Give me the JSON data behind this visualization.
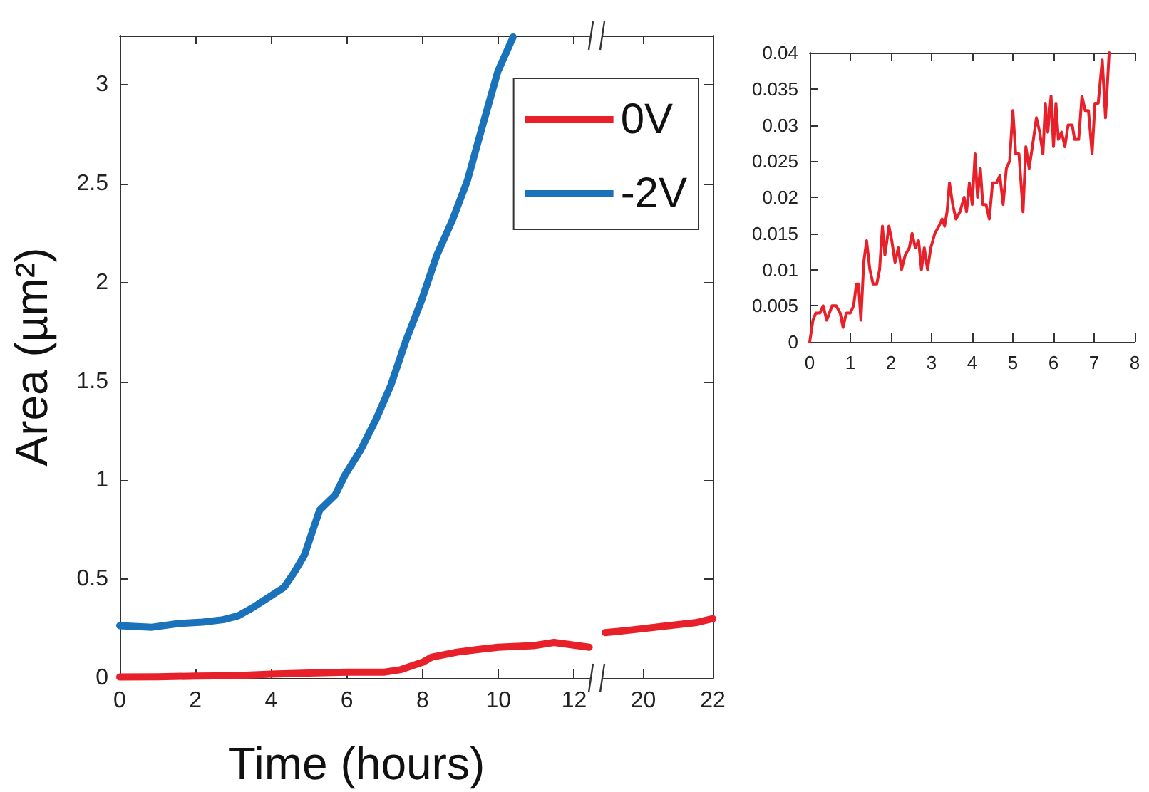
{
  "chart_data": [
    {
      "type": "line",
      "xlabel": "Time (hours)",
      "ylabel": "Area (µm²)",
      "xlim": [
        0,
        12.5
      ],
      "xticks": [
        0,
        2,
        4,
        6,
        8,
        10,
        12
      ],
      "ylim": [
        0,
        3.25
      ],
      "yticks": [
        0,
        0.5,
        1,
        1.5,
        2,
        2.5,
        3
      ],
      "grid": false,
      "legend": "top right",
      "marker": "none",
      "line_style": "solid",
      "series": [
        {
          "name": "0V",
          "color": "#e8202a",
          "x": [
            0,
            1,
            2,
            3,
            4,
            5,
            6,
            7,
            7.43,
            8,
            8.24,
            8.91,
            9.45,
            9.99,
            10.93,
            11.47,
            12.4
          ],
          "values": [
            0.005,
            0.006,
            0.01,
            0.012,
            0.02,
            0.025,
            0.03,
            0.03,
            0.043,
            0.08,
            0.106,
            0.131,
            0.144,
            0.156,
            0.164,
            0.18,
            0.156
          ]
        },
        {
          "name": "-2V",
          "color": "#1a72bb",
          "x": [
            0,
            0.85,
            1.52,
            2.19,
            2.73,
            3.13,
            3.53,
            3.94,
            4.34,
            4.61,
            4.88,
            5.08,
            5.28,
            5.69,
            5.95,
            6.36,
            6.76,
            7.16,
            7.56,
            7.97,
            8.37,
            8.78,
            9.18,
            9.58,
            9.99,
            10.39
          ],
          "values": [
            0.265,
            0.257,
            0.275,
            0.283,
            0.295,
            0.315,
            0.358,
            0.409,
            0.459,
            0.535,
            0.623,
            0.737,
            0.85,
            0.926,
            1.027,
            1.153,
            1.305,
            1.481,
            1.708,
            1.91,
            2.137,
            2.314,
            2.516,
            2.793,
            3.071,
            3.243
          ]
        }
      ]
    },
    {
      "type": "line",
      "xlim": [
        18.8,
        22
      ],
      "xticks": [
        20,
        22
      ],
      "ylim": [
        0,
        3.25
      ],
      "yticks": [
        0,
        0.5,
        1,
        1.5,
        2,
        2.5,
        3
      ],
      "grid": false,
      "tick_labels": "x",
      "marker": "none",
      "line_style": "solid",
      "series": [
        {
          "color": "#e8202a",
          "x": [
            18.9,
            19.5,
            20,
            20.5,
            21,
            21.5,
            22
          ],
          "values": [
            0.23,
            0.24,
            0.25,
            0.26,
            0.27,
            0.28,
            0.3
          ]
        }
      ]
    },
    {
      "type": "line",
      "xlim": [
        0,
        8
      ],
      "xticks": [
        0,
        1,
        2,
        3,
        4,
        5,
        6,
        7,
        8
      ],
      "ylim": [
        0,
        0.04
      ],
      "yticks": [
        0,
        0.005,
        0.01,
        0.015,
        0.02,
        0.025,
        0.03,
        0.035,
        0.04
      ],
      "grid": false,
      "marker": "none",
      "line_style": "solid",
      "series": [
        {
          "color": "#e8202a",
          "x": [
            0,
            0.08,
            0.15,
            0.25,
            0.33,
            0.42,
            0.55,
            0.65,
            0.75,
            0.82,
            0.9,
            1.0,
            1.08,
            1.15,
            1.2,
            1.26,
            1.33,
            1.4,
            1.48,
            1.56,
            1.65,
            1.72,
            1.79,
            1.85,
            1.95,
            2.02,
            2.1,
            2.18,
            2.26,
            2.35,
            2.45,
            2.52,
            2.6,
            2.68,
            2.75,
            2.82,
            2.9,
            2.98,
            3.08,
            3.18,
            3.26,
            3.32,
            3.38,
            3.44,
            3.52,
            3.6,
            3.7,
            3.8,
            3.86,
            3.93,
            4.0,
            4.07,
            4.13,
            4.2,
            4.26,
            4.34,
            4.42,
            4.5,
            4.6,
            4.68,
            4.76,
            4.84,
            4.92,
            5.0,
            5.07,
            5.15,
            5.25,
            5.32,
            5.4,
            5.48,
            5.58,
            5.66,
            5.74,
            5.8,
            5.86,
            5.94,
            6.0,
            6.06,
            6.12,
            6.2,
            6.28,
            6.36,
            6.46,
            6.52,
            6.62,
            6.7,
            6.78,
            6.86,
            6.95,
            7.02,
            7.1,
            7.2,
            7.28,
            7.37
          ],
          "values": [
            0,
            0.003,
            0.004,
            0.004,
            0.005,
            0.003,
            0.005,
            0.005,
            0.004,
            0.002,
            0.004,
            0.004,
            0.005,
            0.008,
            0.008,
            0.003,
            0.011,
            0.014,
            0.01,
            0.008,
            0.008,
            0.01,
            0.016,
            0.012,
            0.016,
            0.014,
            0.011,
            0.013,
            0.01,
            0.012,
            0.013,
            0.015,
            0.013,
            0.014,
            0.01,
            0.013,
            0.01,
            0.013,
            0.015,
            0.016,
            0.017,
            0.016,
            0.018,
            0.022,
            0.019,
            0.017,
            0.018,
            0.02,
            0.018,
            0.022,
            0.019,
            0.026,
            0.02,
            0.024,
            0.019,
            0.019,
            0.017,
            0.022,
            0.022,
            0.023,
            0.019,
            0.024,
            0.025,
            0.032,
            0.026,
            0.026,
            0.018,
            0.027,
            0.024,
            0.027,
            0.031,
            0.029,
            0.026,
            0.033,
            0.029,
            0.034,
            0.027,
            0.033,
            0.028,
            0.029,
            0.027,
            0.03,
            0.03,
            0.028,
            0.028,
            0.034,
            0.032,
            0.032,
            0.026,
            0.033,
            0.033,
            0.039,
            0.031,
            0.04
          ]
        }
      ]
    }
  ]
}
